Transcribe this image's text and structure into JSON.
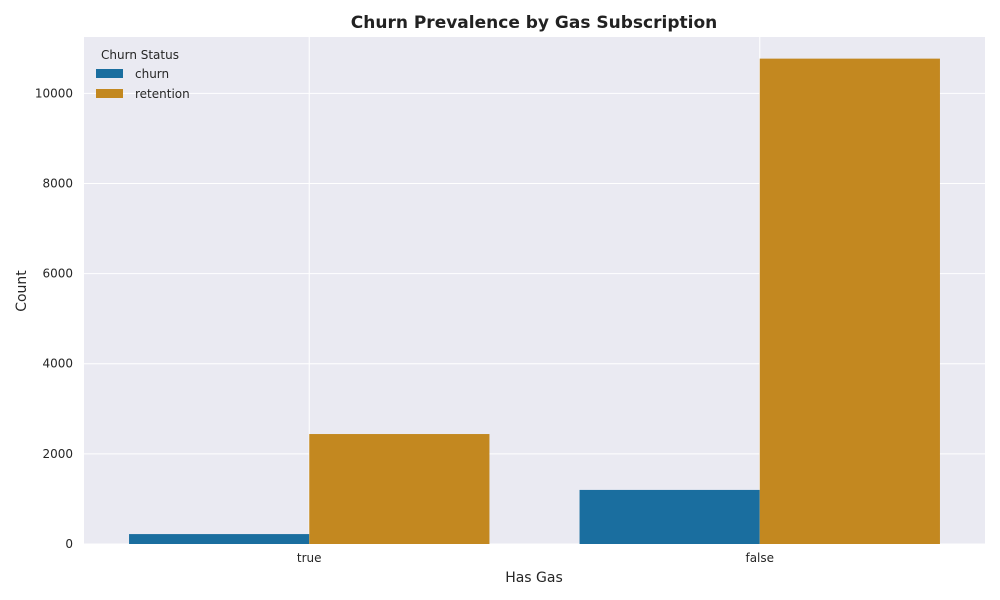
{
  "chart_data": {
    "type": "bar",
    "title": "Churn Prevalence by Gas Subscription",
    "xlabel": "Has Gas",
    "ylabel": "Count",
    "categories": [
      "true",
      "false"
    ],
    "series": [
      {
        "name": "churn",
        "values": [
          220,
          1200
        ],
        "color": "#1a6e9f"
      },
      {
        "name": "retention",
        "values": [
          2440,
          10770
        ],
        "color": "#c38820"
      }
    ],
    "ylim": [
      0,
      11250
    ],
    "yticks": [
      0,
      2000,
      4000,
      6000,
      8000,
      10000
    ],
    "grid": true,
    "legend": {
      "title": "Churn Status",
      "placement": "top-left"
    },
    "colors": {
      "background": "#eaeaf2",
      "grid": "#ffffff"
    }
  }
}
